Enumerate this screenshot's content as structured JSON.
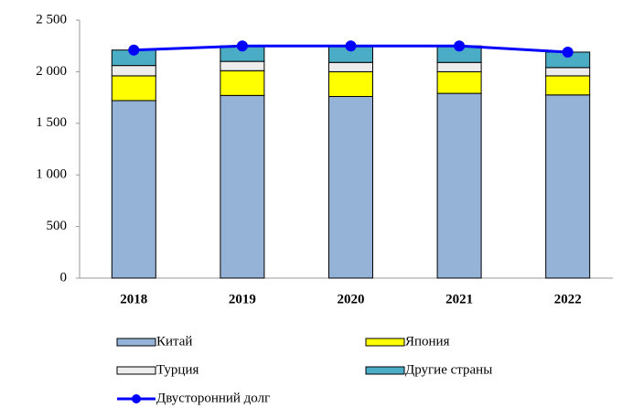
{
  "chart_data": {
    "type": "stacked_bar_line",
    "categories": [
      "2018",
      "2019",
      "2020",
      "2021",
      "2022"
    ],
    "series": [
      {
        "name": "Китай",
        "color": "#95b3d7",
        "values": [
          1720,
          1770,
          1760,
          1790,
          1775
        ]
      },
      {
        "name": "Япония",
        "color": "#ffff00",
        "values": [
          240,
          240,
          240,
          210,
          185
        ]
      },
      {
        "name": "Турция",
        "color": "#ededed",
        "values": [
          100,
          90,
          90,
          90,
          80
        ]
      },
      {
        "name": "Другие страны",
        "color": "#4bacc6",
        "values": [
          150,
          150,
          160,
          160,
          150
        ]
      },
      {
        "name": "Двусторонний долг",
        "color": "#0000ff",
        "type": "line",
        "values": [
          2210,
          2250,
          2250,
          2250,
          2190
        ]
      }
    ],
    "ylim": [
      0,
      2500
    ],
    "yticks": [
      0,
      500,
      {
        "value": 1000,
        "label": "1 000"
      },
      {
        "value": 1500,
        "label": "1 500"
      },
      {
        "value": 2000,
        "label": "2 000"
      },
      {
        "value": 2500,
        "label": "2 500"
      }
    ],
    "legend": "bottom"
  }
}
